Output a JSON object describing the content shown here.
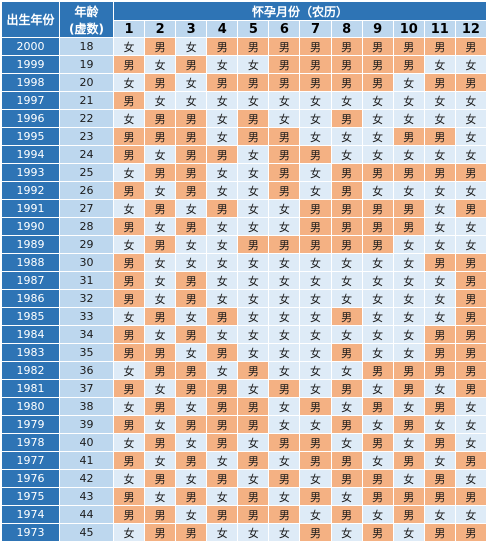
{
  "header": {
    "birth_year": "出生年份",
    "age": "年龄",
    "age_note": "(虚数)",
    "months_title": "怀孕月份（农历）",
    "months": [
      "1",
      "2",
      "3",
      "4",
      "5",
      "6",
      "7",
      "8",
      "9",
      "10",
      "11",
      "12"
    ]
  },
  "table": {
    "rows": [
      [
        "2000",
        "18",
        [
          "女",
          "男",
          "女",
          "男",
          "男",
          "男",
          "男",
          "男",
          "男",
          "男",
          "男",
          "男"
        ]
      ],
      [
        "1999",
        "19",
        [
          "男",
          "女",
          "男",
          "女",
          "女",
          "男",
          "男",
          "男",
          "男",
          "男",
          "女",
          "女"
        ]
      ],
      [
        "1998",
        "20",
        [
          "女",
          "男",
          "女",
          "男",
          "男",
          "男",
          "男",
          "男",
          "男",
          "女",
          "男",
          "男"
        ]
      ],
      [
        "1997",
        "21",
        [
          "男",
          "女",
          "女",
          "女",
          "女",
          "女",
          "女",
          "女",
          "女",
          "女",
          "女",
          "女"
        ]
      ],
      [
        "1996",
        "22",
        [
          "女",
          "男",
          "男",
          "女",
          "男",
          "女",
          "女",
          "男",
          "女",
          "女",
          "女",
          "女"
        ]
      ],
      [
        "1995",
        "23",
        [
          "男",
          "男",
          "男",
          "女",
          "男",
          "男",
          "女",
          "女",
          "女",
          "男",
          "男",
          "女"
        ]
      ],
      [
        "1994",
        "24",
        [
          "男",
          "女",
          "男",
          "男",
          "女",
          "男",
          "男",
          "女",
          "女",
          "女",
          "女",
          "女"
        ]
      ],
      [
        "1993",
        "25",
        [
          "女",
          "男",
          "男",
          "女",
          "女",
          "男",
          "女",
          "男",
          "男",
          "男",
          "男",
          "男"
        ]
      ],
      [
        "1992",
        "26",
        [
          "男",
          "女",
          "男",
          "女",
          "女",
          "男",
          "女",
          "男",
          "女",
          "女",
          "女",
          "女"
        ]
      ],
      [
        "1991",
        "27",
        [
          "女",
          "男",
          "女",
          "男",
          "女",
          "女",
          "男",
          "男",
          "男",
          "男",
          "女",
          "男"
        ]
      ],
      [
        "1990",
        "28",
        [
          "男",
          "女",
          "男",
          "女",
          "女",
          "女",
          "男",
          "男",
          "男",
          "男",
          "女",
          "女"
        ]
      ],
      [
        "1989",
        "29",
        [
          "女",
          "男",
          "女",
          "女",
          "男",
          "男",
          "男",
          "男",
          "男",
          "女",
          "女",
          "女"
        ]
      ],
      [
        "1988",
        "30",
        [
          "男",
          "女",
          "女",
          "女",
          "女",
          "女",
          "女",
          "女",
          "女",
          "女",
          "男",
          "男"
        ]
      ],
      [
        "1987",
        "31",
        [
          "男",
          "女",
          "男",
          "女",
          "女",
          "女",
          "女",
          "女",
          "女",
          "女",
          "女",
          "男"
        ]
      ],
      [
        "1986",
        "32",
        [
          "男",
          "女",
          "男",
          "女",
          "女",
          "女",
          "女",
          "女",
          "女",
          "女",
          "女",
          "男"
        ]
      ],
      [
        "1985",
        "33",
        [
          "女",
          "男",
          "女",
          "男",
          "女",
          "女",
          "女",
          "男",
          "女",
          "女",
          "女",
          "男"
        ]
      ],
      [
        "1984",
        "34",
        [
          "男",
          "女",
          "男",
          "女",
          "女",
          "女",
          "女",
          "女",
          "女",
          "女",
          "男",
          "男"
        ]
      ],
      [
        "1983",
        "35",
        [
          "男",
          "男",
          "女",
          "男",
          "女",
          "女",
          "女",
          "男",
          "女",
          "女",
          "男",
          "男"
        ]
      ],
      [
        "1982",
        "36",
        [
          "女",
          "男",
          "男",
          "女",
          "男",
          "女",
          "女",
          "女",
          "男",
          "男",
          "男",
          "男"
        ]
      ],
      [
        "1981",
        "37",
        [
          "男",
          "女",
          "男",
          "男",
          "女",
          "男",
          "女",
          "男",
          "女",
          "男",
          "女",
          "男"
        ]
      ],
      [
        "1980",
        "38",
        [
          "女",
          "男",
          "女",
          "男",
          "男",
          "女",
          "男",
          "女",
          "男",
          "女",
          "男",
          "女"
        ]
      ],
      [
        "1979",
        "39",
        [
          "男",
          "女",
          "男",
          "男",
          "男",
          "女",
          "女",
          "男",
          "女",
          "男",
          "女",
          "女"
        ]
      ],
      [
        "1978",
        "40",
        [
          "女",
          "男",
          "女",
          "男",
          "女",
          "男",
          "男",
          "女",
          "男",
          "女",
          "男",
          "女"
        ]
      ],
      [
        "1977",
        "41",
        [
          "男",
          "女",
          "男",
          "女",
          "男",
          "女",
          "男",
          "男",
          "女",
          "男",
          "女",
          "男"
        ]
      ],
      [
        "1976",
        "42",
        [
          "女",
          "男",
          "女",
          "男",
          "女",
          "男",
          "女",
          "男",
          "男",
          "女",
          "男",
          "女"
        ]
      ],
      [
        "1975",
        "43",
        [
          "男",
          "女",
          "男",
          "女",
          "男",
          "女",
          "男",
          "女",
          "男",
          "男",
          "男",
          "男"
        ]
      ],
      [
        "1974",
        "44",
        [
          "男",
          "男",
          "女",
          "男",
          "男",
          "男",
          "女",
          "男",
          "女",
          "男",
          "女",
          "女"
        ]
      ],
      [
        "1973",
        "45",
        [
          "女",
          "男",
          "男",
          "女",
          "女",
          "女",
          "男",
          "女",
          "男",
          "女",
          "男",
          "男"
        ]
      ]
    ]
  }
}
